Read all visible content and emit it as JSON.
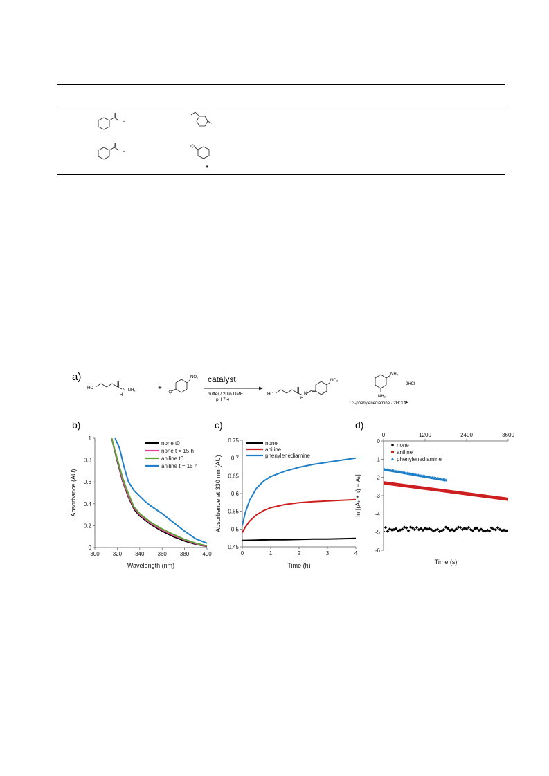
{
  "table": {
    "compound_label_row2": "8"
  },
  "scheme": {
    "panel_label": "a)",
    "reagent_arrow_top": "catalyst",
    "conditions_line1": "buffer / 20% DMF",
    "conditions_line2": "pH 7.4",
    "plus": "+",
    "reactant1_label_ho": "HO",
    "reactant1_label_nh2": "N–NH₂",
    "reactant1_label_h": "H",
    "reactant2_label_no2": "NO₂",
    "product_label_ho": "HO",
    "product_label_no2": "NO₂",
    "product_label_n": "N",
    "product_label_h": "H",
    "catalyst_nh2_top": "NH₂",
    "catalyst_nh2_bottom": "NH₂",
    "catalyst_salt": "2HCl",
    "catalyst_name": "1,3-phenylenediamine · 2HCl",
    "catalyst_number": "15"
  },
  "panels": {
    "b_label": "b)",
    "c_label": "c)",
    "d_label": "d)"
  },
  "colors": {
    "none": "#000000",
    "none_t15": "#e8409a",
    "aniline": "#cc1f1f",
    "aniline_t0_green": "#5fa33a",
    "phenylenediamine": "#1f7fc8"
  },
  "chart_data": [
    {
      "type": "line",
      "panel": "b",
      "xlabel": "Wavelength (nm)",
      "ylabel": "Absorbance (AU)",
      "xlim": [
        300,
        400
      ],
      "ylim": [
        0,
        1
      ],
      "xticks": [
        300,
        320,
        340,
        360,
        380,
        400
      ],
      "yticks": [
        0,
        0.2,
        0.4,
        0.6,
        0.8,
        1
      ],
      "ytick_labels": [
        "0",
        "0.2",
        "0.4",
        "0.6",
        "0.8",
        "1"
      ],
      "grid": false,
      "legend": "top-right",
      "series": [
        {
          "name": "none t0",
          "color": "#000000",
          "x": [
            315,
            320,
            325,
            330,
            335,
            340,
            345,
            350,
            360,
            370,
            380,
            390,
            400
          ],
          "y": [
            1.0,
            0.79,
            0.6,
            0.46,
            0.35,
            0.29,
            0.25,
            0.21,
            0.15,
            0.1,
            0.06,
            0.03,
            0.01
          ]
        },
        {
          "name": "none t = 15 h",
          "color": "#e8409a",
          "x": [
            315,
            320,
            325,
            330,
            335,
            340,
            345,
            350,
            360,
            370,
            380,
            390,
            400
          ],
          "y": [
            1.0,
            0.8,
            0.61,
            0.47,
            0.36,
            0.3,
            0.26,
            0.22,
            0.16,
            0.11,
            0.07,
            0.035,
            0.012
          ]
        },
        {
          "name": "aniline t0",
          "color": "#5fa33a",
          "x": [
            315,
            320,
            325,
            330,
            335,
            340,
            345,
            350,
            360,
            370,
            380,
            390,
            400
          ],
          "y": [
            1.0,
            0.81,
            0.63,
            0.49,
            0.37,
            0.31,
            0.27,
            0.23,
            0.17,
            0.12,
            0.075,
            0.04,
            0.015
          ]
        },
        {
          "name": "aniline t = 15 h",
          "color": "#1f7fc8",
          "x": [
            318,
            322,
            326,
            330,
            335,
            340,
            345,
            350,
            360,
            370,
            380,
            390,
            400
          ],
          "y": [
            1.0,
            0.91,
            0.74,
            0.6,
            0.52,
            0.47,
            0.42,
            0.38,
            0.31,
            0.23,
            0.15,
            0.08,
            0.04
          ]
        }
      ]
    },
    {
      "type": "line",
      "panel": "c",
      "xlabel": "Time (h)",
      "ylabel": "Absorbance at 330 nm (AU)",
      "xlim": [
        0,
        4
      ],
      "ylim": [
        0.45,
        0.75
      ],
      "xticks": [
        0,
        1,
        2,
        3,
        4
      ],
      "yticks": [
        0.45,
        0.5,
        0.55,
        0.6,
        0.65,
        0.7,
        0.75
      ],
      "ytick_labels": [
        "0.45",
        "0.5",
        "0.55",
        "0.6",
        "0.65",
        "0.7",
        "0.75"
      ],
      "grid": false,
      "legend": "top-left",
      "series": [
        {
          "name": "none",
          "color": "#000000",
          "x": [
            0,
            0.5,
            1,
            1.5,
            2,
            2.5,
            3,
            3.5,
            4
          ],
          "y": [
            0.468,
            0.469,
            0.47,
            0.47,
            0.471,
            0.472,
            0.472,
            0.473,
            0.474
          ]
        },
        {
          "name": "aniline",
          "color": "#cc1f1f",
          "x": [
            0,
            0.1,
            0.25,
            0.5,
            0.75,
            1,
            1.5,
            2,
            2.5,
            3,
            3.5,
            4
          ],
          "y": [
            0.49,
            0.505,
            0.522,
            0.54,
            0.552,
            0.56,
            0.569,
            0.574,
            0.577,
            0.579,
            0.581,
            0.583
          ]
        },
        {
          "name": "phenylenediamine",
          "color": "#1f7fc8",
          "x": [
            0,
            0.1,
            0.25,
            0.5,
            0.75,
            1,
            1.5,
            2,
            2.5,
            3,
            3.5,
            4
          ],
          "y": [
            0.51,
            0.545,
            0.58,
            0.615,
            0.635,
            0.648,
            0.663,
            0.674,
            0.682,
            0.688,
            0.694,
            0.7
          ]
        }
      ]
    },
    {
      "type": "scatter",
      "panel": "d",
      "xlabel": "Time (s)",
      "ylabel": "ln [(Aₜ + τ) − Aₜ]",
      "xlim": [
        0,
        3600
      ],
      "ylim": [
        -6,
        0
      ],
      "xticks": [
        0,
        1200,
        2400,
        3600
      ],
      "xaxis_position": "top",
      "yticks": [
        0,
        -1,
        -2,
        -3,
        -4,
        -5,
        -6
      ],
      "ytick_labels": [
        "0",
        "-1",
        "-2",
        "-3",
        "-4",
        "-5",
        "-6"
      ],
      "grid": false,
      "legend": "top-left",
      "series": [
        {
          "name": "none",
          "color": "#000000",
          "marker": "diamond",
          "x_start": 0,
          "x_end": 3600,
          "x_step": 60,
          "y_mean": -4.85,
          "y_jitter": 0.12
        },
        {
          "name": "aniline",
          "color": "#cc1f1f",
          "marker": "square",
          "x_start": 0,
          "x_end": 3600,
          "x_step": 36,
          "y_start": -2.3,
          "y_end": -3.2
        },
        {
          "name": "phenylenediamine",
          "color": "#1f7fc8",
          "marker": "triangle",
          "x_start": 0,
          "x_end": 1800,
          "x_step": 36,
          "y_start": -1.55,
          "y_end": -2.15
        }
      ]
    }
  ]
}
